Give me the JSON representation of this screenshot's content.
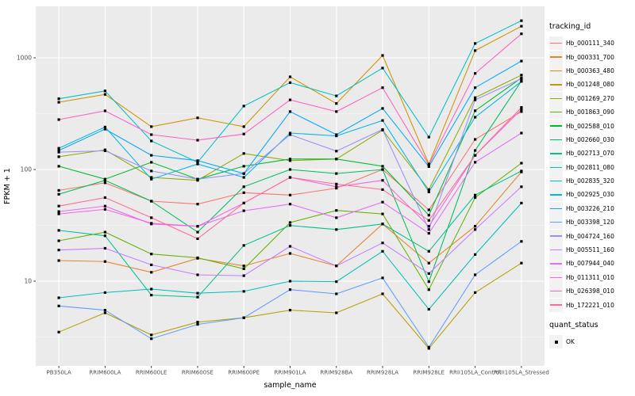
{
  "chart_data": {
    "type": "line",
    "x_type": "categorical",
    "title": "",
    "xlabel": "sample_name",
    "ylabel": "FPKM + 1",
    "y_scale": "log10",
    "ylim": [
      1.7,
      2900
    ],
    "y_ticks": [
      {
        "value": 10,
        "label": "10"
      },
      {
        "value": 100,
        "label": "100"
      },
      {
        "value": 1000,
        "label": "1000"
      }
    ],
    "y_minor_ticks": [
      3.162,
      31.62,
      316.2
    ],
    "grid": "on",
    "legend_position": "right",
    "point_shape": "filled-square",
    "categories": [
      "PB350LA",
      "RRIM600LA",
      "RRIM600LE",
      "RRIM600SE",
      "RRIM600PE",
      "RRIM901LA",
      "RRIM928BA",
      "RRIM928LA",
      "RRIM928LE",
      "RRII105LA_Control",
      "RRII105LA_Stressed"
    ],
    "series": [
      {
        "name": "Hb_000111_340",
        "color": "#F8766D",
        "values": [
          65,
          76,
          52,
          49,
          62,
          59,
          68,
          100,
          43.5,
          186,
          330
        ]
      },
      {
        "name": "Hb_000331_700",
        "color": "#E8842F",
        "values": [
          15.3,
          15,
          12,
          16,
          13.7,
          17.7,
          13.7,
          32.5,
          14.5,
          31,
          95
        ]
      },
      {
        "name": "Hb_000363_480",
        "color": "#D39200",
        "values": [
          400,
          470,
          242,
          290,
          242,
          676,
          390,
          1050,
          112,
          1160,
          1920
        ]
      },
      {
        "name": "Hb_001248_080",
        "color": "#B79F00",
        "values": [
          3.5,
          5.2,
          3.3,
          4.3,
          4.7,
          5.5,
          5.2,
          7.7,
          2.5,
          7.9,
          14.5
        ]
      },
      {
        "name": "Hb_001269_270",
        "color": "#93AA00",
        "values": [
          130,
          150,
          85,
          80,
          139,
          120,
          124,
          225,
          66,
          440,
          700
        ]
      },
      {
        "name": "Hb_001863_090",
        "color": "#64B200",
        "values": [
          23,
          27.5,
          17.5,
          16.2,
          12.9,
          33.5,
          43,
          40,
          8.4,
          56,
          114
        ]
      },
      {
        "name": "Hb_002588_010",
        "color": "#00B92A",
        "values": [
          107,
          82,
          116,
          82,
          107,
          124,
          124,
          107,
          39,
          336,
          660
        ]
      },
      {
        "name": "Hb_002660_030",
        "color": "#00BC5D",
        "values": [
          60,
          80,
          52,
          27.5,
          70,
          100,
          92,
          100,
          9.9,
          148,
          620
        ]
      },
      {
        "name": "Hb_002713_070",
        "color": "#00C08E",
        "values": [
          28.5,
          25.5,
          7.5,
          7.2,
          20.9,
          31.5,
          29,
          32.5,
          18.5,
          59,
          97
        ]
      },
      {
        "name": "Hb_002811_080",
        "color": "#00C0B8",
        "values": [
          7.1,
          7.9,
          8.5,
          7.8,
          8.1,
          10,
          9.9,
          18.5,
          5.6,
          17.3,
          50
        ]
      },
      {
        "name": "Hb_002835_320",
        "color": "#00BFC4",
        "values": [
          430,
          505,
          180,
          116,
          370,
          600,
          456,
          810,
          195,
          1345,
          2150
        ]
      },
      {
        "name": "Hb_002925_030",
        "color": "#00B5EB",
        "values": [
          155,
          240,
          82,
          112,
          85,
          212,
          200,
          275,
          63,
          294,
          615
        ]
      },
      {
        "name": "Hb_003226_210",
        "color": "#00A9FF",
        "values": [
          148,
          230,
          134,
          120,
          92,
          330,
          205,
          352,
          106,
          540,
          935
        ]
      },
      {
        "name": "Hb_003398_120",
        "color": "#619CFF",
        "values": [
          6,
          5.5,
          3.05,
          4.1,
          4.7,
          8.4,
          7.7,
          10.7,
          2.56,
          11.4,
          22.7
        ]
      },
      {
        "name": "Hb_004724_160",
        "color": "#9590FF",
        "values": [
          143,
          147,
          97,
          82,
          92,
          205,
          146,
          228,
          29,
          420,
          650
        ]
      },
      {
        "name": "Hb_005511_160",
        "color": "#C77CFF",
        "values": [
          19,
          19.7,
          14,
          11.4,
          11.2,
          20.5,
          13.7,
          22,
          11.7,
          29,
          70
        ]
      },
      {
        "name": "Hb_007944_040",
        "color": "#E26EF7",
        "values": [
          42,
          47,
          32.5,
          31,
          42.7,
          49,
          37,
          51,
          26.8,
          116,
          212
        ]
      },
      {
        "name": "Hb_011311_010",
        "color": "#F763E0",
        "values": [
          40,
          44,
          33,
          31,
          50,
          85,
          70,
          80,
          31,
          134,
          345
        ]
      },
      {
        "name": "Hb_026398_010",
        "color": "#FF61C3",
        "values": [
          280,
          335,
          205,
          183,
          208,
          420,
          330,
          540,
          110,
          725,
          1640
        ]
      },
      {
        "name": "Hb_172221_010",
        "color": "#FF6C91",
        "values": [
          47,
          56,
          37,
          24,
          50,
          85,
          74,
          66,
          35,
          134,
          360
        ]
      }
    ],
    "legends": [
      {
        "title": "tracking_id",
        "type": "line-keys"
      },
      {
        "title": "quant_status",
        "items": [
          {
            "label": "OK",
            "shape": "filled-square",
            "color": "#000000"
          }
        ]
      }
    ],
    "colors": {
      "panel_background": "#EBEBEB",
      "grid_major": "#FFFFFF",
      "grid_minor": "#F5F5F5",
      "tick_label": "#4D4D4D",
      "axis_title": "#000000",
      "point": "#000000",
      "legend_key_background": "#F2F2F2"
    }
  }
}
